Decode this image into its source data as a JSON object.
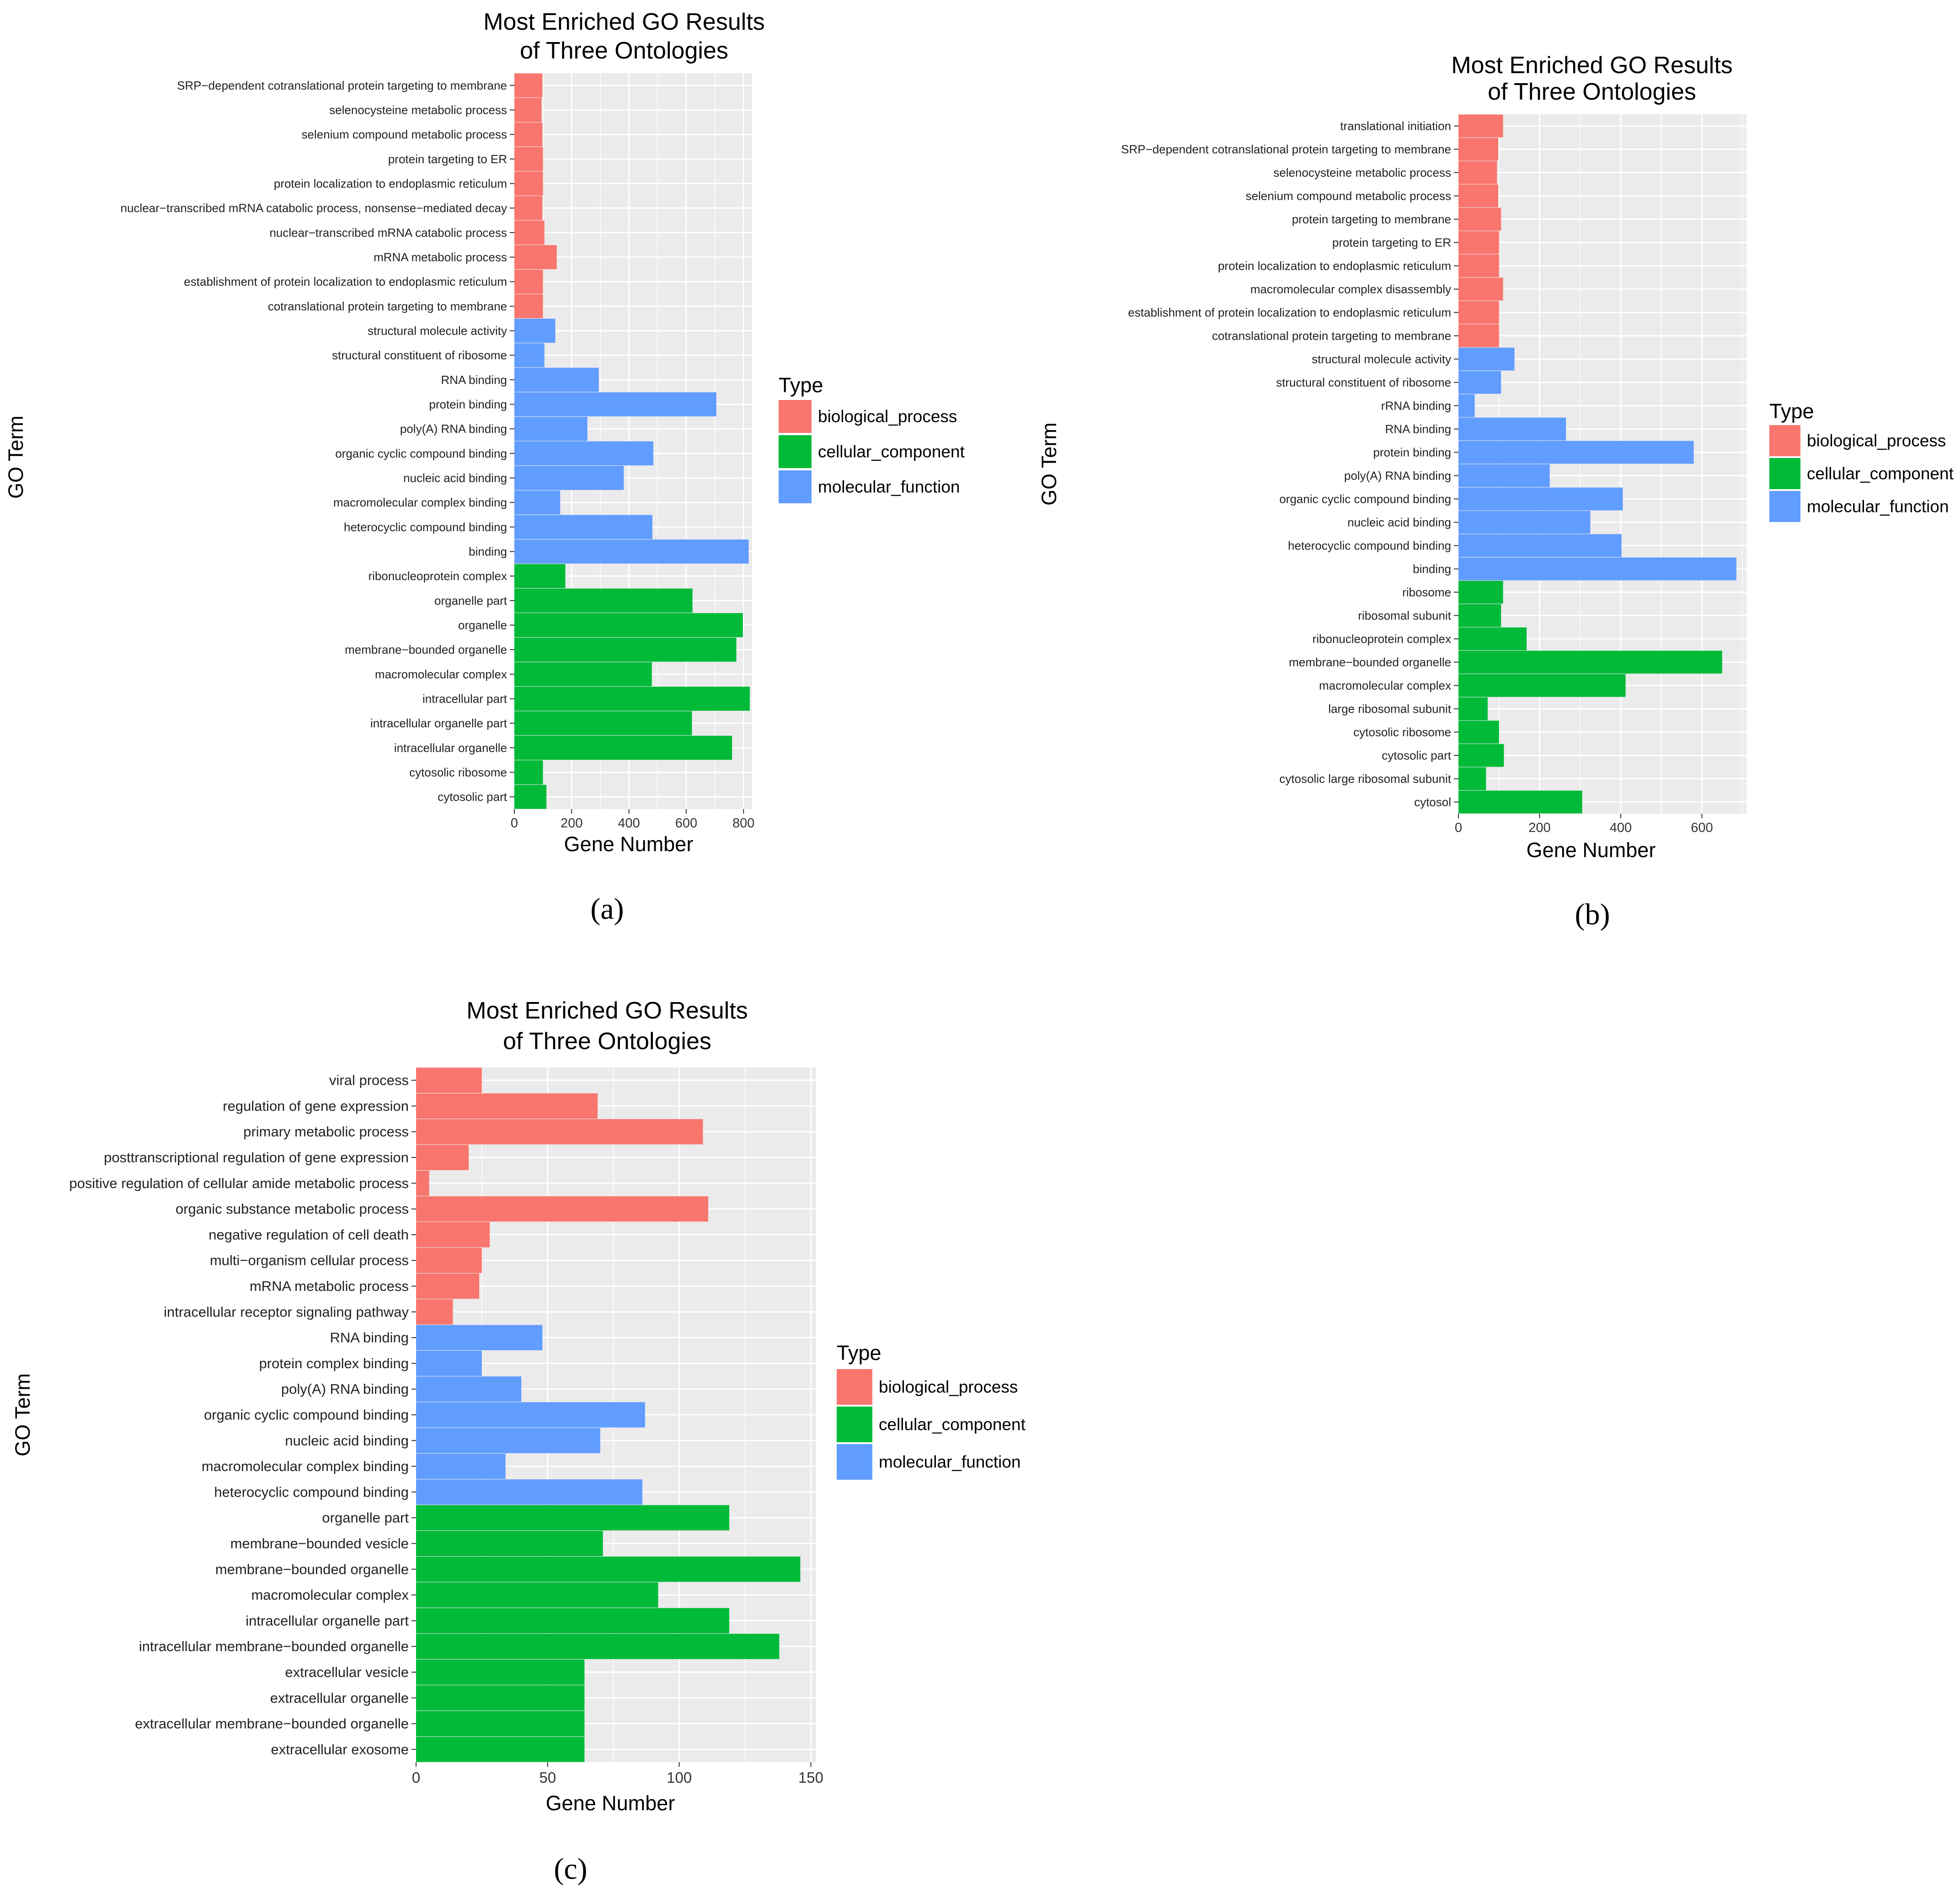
{
  "colors": {
    "biological_process": "#F8766D",
    "cellular_component": "#00BA38",
    "molecular_function": "#619CFF",
    "panel_bg": "#EBEBEB",
    "grid": "#FFFFFF"
  },
  "chart_data": [
    {
      "id": "a",
      "type": "bar",
      "orientation": "horizontal",
      "panel_label": "(a)",
      "title": [
        "Most Enriched GO Results",
        "of Three Ontologies"
      ],
      "xlabel": "Gene Number",
      "ylabel": "GO Term",
      "xlim": [
        0,
        830
      ],
      "xticks": [
        0,
        200,
        400,
        600,
        800
      ],
      "legend": {
        "title": "Type",
        "position": "right",
        "items": [
          {
            "key": "biological_process",
            "label": "biological_process"
          },
          {
            "key": "cellular_component",
            "label": "cellular_component"
          },
          {
            "key": "molecular_function",
            "label": "molecular_function"
          }
        ]
      },
      "bars": [
        {
          "label": "SRP−dependent cotranslational protein targeting to membrane",
          "value": 98,
          "type": "biological_process"
        },
        {
          "label": "selenocysteine metabolic process",
          "value": 95,
          "type": "biological_process"
        },
        {
          "label": "selenium compound metabolic process",
          "value": 98,
          "type": "biological_process"
        },
        {
          "label": "protein targeting to ER",
          "value": 100,
          "type": "biological_process"
        },
        {
          "label": "protein localization to endoplasmic reticulum",
          "value": 100,
          "type": "biological_process"
        },
        {
          "label": "nuclear−transcribed mRNA catabolic process, nonsense−mediated decay",
          "value": 98,
          "type": "biological_process"
        },
        {
          "label": "nuclear−transcribed mRNA catabolic process",
          "value": 105,
          "type": "biological_process"
        },
        {
          "label": "mRNA metabolic process",
          "value": 148,
          "type": "biological_process"
        },
        {
          "label": "establishment of protein localization to endoplasmic reticulum",
          "value": 100,
          "type": "biological_process"
        },
        {
          "label": "cotranslational protein targeting to membrane",
          "value": 100,
          "type": "biological_process"
        },
        {
          "label": "structural molecule activity",
          "value": 143,
          "type": "molecular_function"
        },
        {
          "label": "structural constituent of ribosome",
          "value": 105,
          "type": "molecular_function"
        },
        {
          "label": "RNA binding",
          "value": 295,
          "type": "molecular_function"
        },
        {
          "label": "protein binding",
          "value": 705,
          "type": "molecular_function"
        },
        {
          "label": "poly(A) RNA binding",
          "value": 255,
          "type": "molecular_function"
        },
        {
          "label": "organic cyclic compound binding",
          "value": 485,
          "type": "molecular_function"
        },
        {
          "label": "nucleic acid binding",
          "value": 382,
          "type": "molecular_function"
        },
        {
          "label": "macromolecular complex binding",
          "value": 160,
          "type": "molecular_function"
        },
        {
          "label": "heterocyclic compound binding",
          "value": 482,
          "type": "molecular_function"
        },
        {
          "label": "binding",
          "value": 818,
          "type": "molecular_function"
        },
        {
          "label": "ribonucleoprotein complex",
          "value": 178,
          "type": "cellular_component"
        },
        {
          "label": "organelle part",
          "value": 622,
          "type": "cellular_component"
        },
        {
          "label": "organelle",
          "value": 798,
          "type": "cellular_component"
        },
        {
          "label": "membrane−bounded organelle",
          "value": 775,
          "type": "cellular_component"
        },
        {
          "label": "macromolecular complex",
          "value": 480,
          "type": "cellular_component"
        },
        {
          "label": "intracellular part",
          "value": 822,
          "type": "cellular_component"
        },
        {
          "label": "intracellular organelle part",
          "value": 620,
          "type": "cellular_component"
        },
        {
          "label": "intracellular organelle",
          "value": 760,
          "type": "cellular_component"
        },
        {
          "label": "cytosolic ribosome",
          "value": 100,
          "type": "cellular_component"
        },
        {
          "label": "cytosolic part",
          "value": 112,
          "type": "cellular_component"
        }
      ]
    },
    {
      "id": "b",
      "type": "bar",
      "orientation": "horizontal",
      "panel_label": "(b)",
      "title": [
        "Most Enriched GO Results",
        "of Three Ontologies"
      ],
      "xlabel": "Gene Number",
      "ylabel": "GO Term",
      "xlim": [
        0,
        710
      ],
      "xticks": [
        0,
        200,
        400,
        600
      ],
      "legend": {
        "title": "Type",
        "position": "right",
        "items": [
          {
            "key": "biological_process",
            "label": "biological_process"
          },
          {
            "key": "cellular_component",
            "label": "cellular_component"
          },
          {
            "key": "molecular_function",
            "label": "molecular_function"
          }
        ]
      },
      "bars": [
        {
          "label": "translational initiation",
          "value": 110,
          "type": "biological_process"
        },
        {
          "label": "SRP−dependent cotranslational protein targeting to membrane",
          "value": 98,
          "type": "biological_process"
        },
        {
          "label": "selenocysteine metabolic process",
          "value": 95,
          "type": "biological_process"
        },
        {
          "label": "selenium compound metabolic process",
          "value": 98,
          "type": "biological_process"
        },
        {
          "label": "protein targeting to membrane",
          "value": 105,
          "type": "biological_process"
        },
        {
          "label": "protein targeting to ER",
          "value": 100,
          "type": "biological_process"
        },
        {
          "label": "protein localization to endoplasmic reticulum",
          "value": 100,
          "type": "biological_process"
        },
        {
          "label": "macromolecular complex disassembly",
          "value": 110,
          "type": "biological_process"
        },
        {
          "label": "establishment of protein localization to endoplasmic reticulum",
          "value": 100,
          "type": "biological_process"
        },
        {
          "label": "cotranslational protein targeting to membrane",
          "value": 100,
          "type": "biological_process"
        },
        {
          "label": "structural molecule activity",
          "value": 138,
          "type": "molecular_function"
        },
        {
          "label": "structural constituent of ribosome",
          "value": 105,
          "type": "molecular_function"
        },
        {
          "label": "rRNA binding",
          "value": 40,
          "type": "molecular_function"
        },
        {
          "label": "RNA binding",
          "value": 265,
          "type": "molecular_function"
        },
        {
          "label": "protein binding",
          "value": 580,
          "type": "molecular_function"
        },
        {
          "label": "poly(A) RNA binding",
          "value": 225,
          "type": "molecular_function"
        },
        {
          "label": "organic cyclic compound binding",
          "value": 405,
          "type": "molecular_function"
        },
        {
          "label": "nucleic acid binding",
          "value": 325,
          "type": "molecular_function"
        },
        {
          "label": "heterocyclic compound binding",
          "value": 402,
          "type": "molecular_function"
        },
        {
          "label": "binding",
          "value": 685,
          "type": "molecular_function"
        },
        {
          "label": "ribosome",
          "value": 110,
          "type": "cellular_component"
        },
        {
          "label": "ribosomal subunit",
          "value": 105,
          "type": "cellular_component"
        },
        {
          "label": "ribonucleoprotein complex",
          "value": 168,
          "type": "cellular_component"
        },
        {
          "label": "membrane−bounded organelle",
          "value": 650,
          "type": "cellular_component"
        },
        {
          "label": "macromolecular complex",
          "value": 412,
          "type": "cellular_component"
        },
        {
          "label": "large ribosomal subunit",
          "value": 72,
          "type": "cellular_component"
        },
        {
          "label": "cytosolic ribosome",
          "value": 100,
          "type": "cellular_component"
        },
        {
          "label": "cytosolic part",
          "value": 112,
          "type": "cellular_component"
        },
        {
          "label": "cytosolic large ribosomal subunit",
          "value": 68,
          "type": "cellular_component"
        },
        {
          "label": "cytosol",
          "value": 305,
          "type": "cellular_component"
        }
      ]
    },
    {
      "id": "c",
      "type": "bar",
      "orientation": "horizontal",
      "panel_label": "(c)",
      "title": [
        "Most Enriched GO Results",
        "of Three Ontologies"
      ],
      "xlabel": "Gene Number",
      "ylabel": "GO Term",
      "xlim": [
        0,
        152
      ],
      "xticks": [
        0,
        50,
        100,
        150
      ],
      "legend": {
        "title": "Type",
        "position": "right",
        "items": [
          {
            "key": "biological_process",
            "label": "biological_process"
          },
          {
            "key": "cellular_component",
            "label": "cellular_component"
          },
          {
            "key": "molecular_function",
            "label": "molecular_function"
          }
        ]
      },
      "bars": [
        {
          "label": "viral process",
          "value": 25,
          "type": "biological_process"
        },
        {
          "label": "regulation of gene expression",
          "value": 69,
          "type": "biological_process"
        },
        {
          "label": "primary metabolic process",
          "value": 109,
          "type": "biological_process"
        },
        {
          "label": "posttranscriptional regulation of gene expression",
          "value": 20,
          "type": "biological_process"
        },
        {
          "label": "positive regulation of cellular amide metabolic process",
          "value": 5,
          "type": "biological_process"
        },
        {
          "label": "organic substance metabolic process",
          "value": 111,
          "type": "biological_process"
        },
        {
          "label": "negative regulation of cell death",
          "value": 28,
          "type": "biological_process"
        },
        {
          "label": "multi−organism cellular process",
          "value": 25,
          "type": "biological_process"
        },
        {
          "label": "mRNA metabolic process",
          "value": 24,
          "type": "biological_process"
        },
        {
          "label": "intracellular receptor signaling pathway",
          "value": 14,
          "type": "biological_process"
        },
        {
          "label": "RNA binding",
          "value": 48,
          "type": "molecular_function"
        },
        {
          "label": "protein complex binding",
          "value": 25,
          "type": "molecular_function"
        },
        {
          "label": "poly(A) RNA binding",
          "value": 40,
          "type": "molecular_function"
        },
        {
          "label": "organic cyclic compound binding",
          "value": 87,
          "type": "molecular_function"
        },
        {
          "label": "nucleic acid binding",
          "value": 70,
          "type": "molecular_function"
        },
        {
          "label": "macromolecular complex binding",
          "value": 34,
          "type": "molecular_function"
        },
        {
          "label": "heterocyclic compound binding",
          "value": 86,
          "type": "molecular_function"
        },
        {
          "label": "organelle part",
          "value": 119,
          "type": "cellular_component"
        },
        {
          "label": "membrane−bounded vesicle",
          "value": 71,
          "type": "cellular_component"
        },
        {
          "label": "membrane−bounded organelle",
          "value": 146,
          "type": "cellular_component"
        },
        {
          "label": "macromolecular complex",
          "value": 92,
          "type": "cellular_component"
        },
        {
          "label": "intracellular organelle part",
          "value": 119,
          "type": "cellular_component"
        },
        {
          "label": "intracellular membrane−bounded organelle",
          "value": 138,
          "type": "cellular_component"
        },
        {
          "label": "extracellular vesicle",
          "value": 64,
          "type": "cellular_component"
        },
        {
          "label": "extracellular organelle",
          "value": 64,
          "type": "cellular_component"
        },
        {
          "label": "extracellular membrane−bounded organelle",
          "value": 64,
          "type": "cellular_component"
        },
        {
          "label": "extracellular exosome",
          "value": 64,
          "type": "cellular_component"
        }
      ]
    }
  ]
}
